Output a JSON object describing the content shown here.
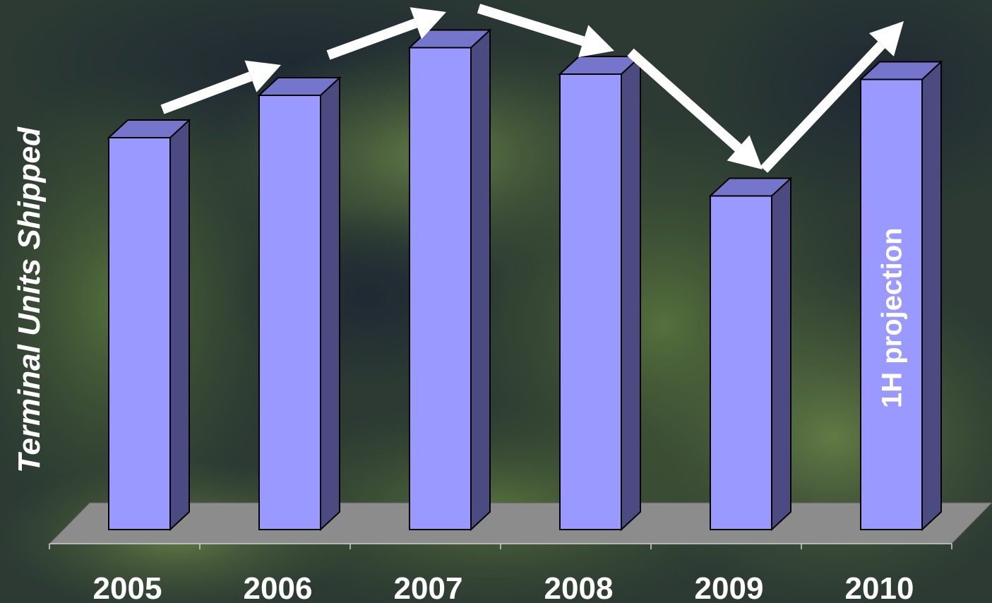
{
  "chart_data": {
    "type": "bar",
    "title": "",
    "xlabel": "",
    "ylabel": "Terminal Units Shipped",
    "categories": [
      "2005",
      "2006",
      "2007",
      "2008",
      "2009",
      "2010"
    ],
    "values": [
      74,
      82,
      91,
      86,
      63,
      85
    ],
    "ylim": [
      0,
      100
    ],
    "grid": false,
    "legend": "none",
    "annotations": [
      {
        "category": "2010",
        "text": "1H projection"
      }
    ],
    "trend_arrows": [
      "up",
      "up",
      "down",
      "down",
      "up"
    ],
    "colors": {
      "bar_front": "#9999ff",
      "bar_top": "#7575cc",
      "bar_side": "#4b4b82",
      "floor": "#8c8c8c",
      "text": "#ffffff",
      "arrow": "#ffffff"
    }
  }
}
